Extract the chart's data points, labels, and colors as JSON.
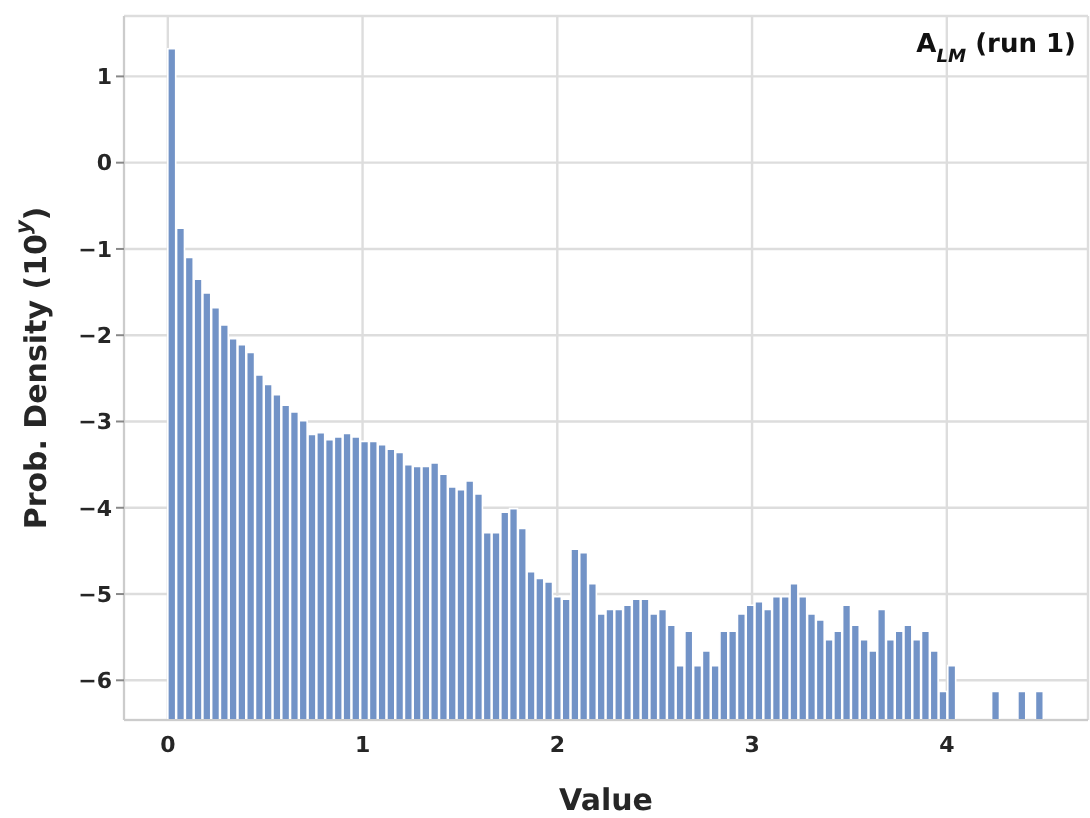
{
  "chart_data": {
    "type": "histogram",
    "annotations": [
      "A$_{LM}$ (run 1)"
    ],
    "xlabel": "Value",
    "ylabel": "Prob. Density (10$^{y}$)",
    "color": "#7293c7",
    "bins": [
      0,
      0.045,
      0.09,
      0.135,
      0.18,
      0.225,
      0.27,
      0.315,
      0.36,
      0.405,
      0.45,
      0.495,
      0.54,
      0.585,
      0.63,
      0.675,
      0.72,
      0.765,
      0.81,
      0.855,
      0.9,
      0.945,
      0.99,
      1.035,
      1.08,
      1.125,
      1.17,
      1.215,
      1.26,
      1.305,
      1.35,
      1.395,
      1.44,
      1.485,
      1.53,
      1.575,
      1.62,
      1.665,
      1.71,
      1.755,
      1.8,
      1.845,
      1.89,
      1.935,
      1.98,
      2.025,
      2.07,
      2.115,
      2.16,
      2.205,
      2.25,
      2.295,
      2.34,
      2.385,
      2.43,
      2.475,
      2.52,
      2.565,
      2.61,
      2.655,
      2.7,
      2.745,
      2.79,
      2.835,
      2.88,
      2.925,
      2.97,
      3.015,
      3.06,
      3.105,
      3.15,
      3.195,
      3.24,
      3.285,
      3.33,
      3.375,
      3.42,
      3.465,
      3.51,
      3.555,
      3.6,
      3.645,
      3.69,
      3.735,
      3.78,
      3.825,
      3.87,
      3.915,
      3.96,
      4.005,
      4.05,
      4.095,
      4.14,
      4.185,
      4.23,
      4.275,
      4.32,
      4.365,
      4.41,
      4.455,
      4.5
    ],
    "values": [
      7.78,
      5.7,
      5.36,
      5.11,
      4.95,
      4.78,
      4.58,
      4.42,
      4.35,
      4.26,
      4,
      3.89,
      3.77,
      3.65,
      3.57,
      3.47,
      3.31,
      3.33,
      3.25,
      3.28,
      3.32,
      3.28,
      3.23,
      3.23,
      3.19,
      3.14,
      3.1,
      2.96,
      2.94,
      2.94,
      2.98,
      2.85,
      2.7,
      2.67,
      2.77,
      2.62,
      2.17,
      2.17,
      2.41,
      2.45,
      2.22,
      1.72,
      1.64,
      1.6,
      1.43,
      1.4,
      1.98,
      1.94,
      1.58,
      1.23,
      1.28,
      1.28,
      1.33,
      1.4,
      1.4,
      1.23,
      1.28,
      1.1,
      0.63,
      1.03,
      0.63,
      0.8,
      0.63,
      1.03,
      1.03,
      1.23,
      1.33,
      1.37,
      1.28,
      1.43,
      1.43,
      1.58,
      1.43,
      1.23,
      1.16,
      0.93,
      1.03,
      1.33,
      1.1,
      0.93,
      0.8,
      1.28,
      0.93,
      1.03,
      1.1,
      0.93,
      1.03,
      0.8,
      0.33,
      0.63,
      null,
      null,
      null,
      null,
      0.33,
      null,
      null,
      0.33,
      null,
      0.33
    ],
    "base": [
      -6.46,
      -6.46,
      -6.46,
      -6.46,
      -6.46,
      -6.46,
      -6.46,
      -6.46,
      -6.46,
      -6.46,
      -6.46,
      -6.46,
      -6.46,
      -6.46,
      -6.46,
      -6.46,
      -6.46,
      -6.46,
      -6.46,
      -6.46,
      -6.46,
      -6.46,
      -6.46,
      -6.46,
      -6.46,
      -6.46,
      -6.46,
      -6.46,
      -6.46,
      -6.46,
      -6.46,
      -6.46,
      -6.46,
      -6.46,
      -6.46,
      -6.46,
      -6.46,
      -6.46,
      -6.46,
      -6.46,
      -6.46,
      -6.46,
      -6.46,
      -6.46,
      -6.46,
      -6.46,
      -6.46,
      -6.46,
      -6.46,
      -6.46,
      -6.46,
      -6.46,
      -6.46,
      -6.46,
      -6.46,
      -6.46,
      -6.46,
      -6.46,
      -6.46,
      -6.46,
      -6.46,
      -6.46,
      -6.46,
      -6.46,
      -6.46,
      -6.46,
      -6.46,
      -6.46,
      -6.46,
      -6.46,
      -6.46,
      -6.46,
      -6.46,
      -6.46,
      -6.46,
      -6.46,
      -6.46,
      -6.46,
      -6.46,
      -6.46,
      -6.46,
      -6.46,
      -6.46,
      -6.46,
      -6.46,
      -6.46,
      -6.46,
      -6.46,
      -6.46,
      -6.46,
      null,
      null,
      null,
      null,
      -6.46,
      null,
      null,
      -6.46,
      null,
      -6.46
    ],
    "xlim": [
      -0.225,
      4.725
    ],
    "xticks": [
      0,
      1,
      2,
      3,
      4
    ],
    "ylim": [
      -6.46,
      1.7
    ],
    "yticks": [
      {
        "value": -6,
        "label": "−6"
      },
      {
        "value": -5,
        "label": "−5"
      },
      {
        "value": -4,
        "label": "−4"
      },
      {
        "value": -3,
        "label": "−3"
      },
      {
        "value": -2,
        "label": "−2"
      },
      {
        "value": -1,
        "label": "−1"
      },
      0,
      1
    ],
    "grid": true
  }
}
